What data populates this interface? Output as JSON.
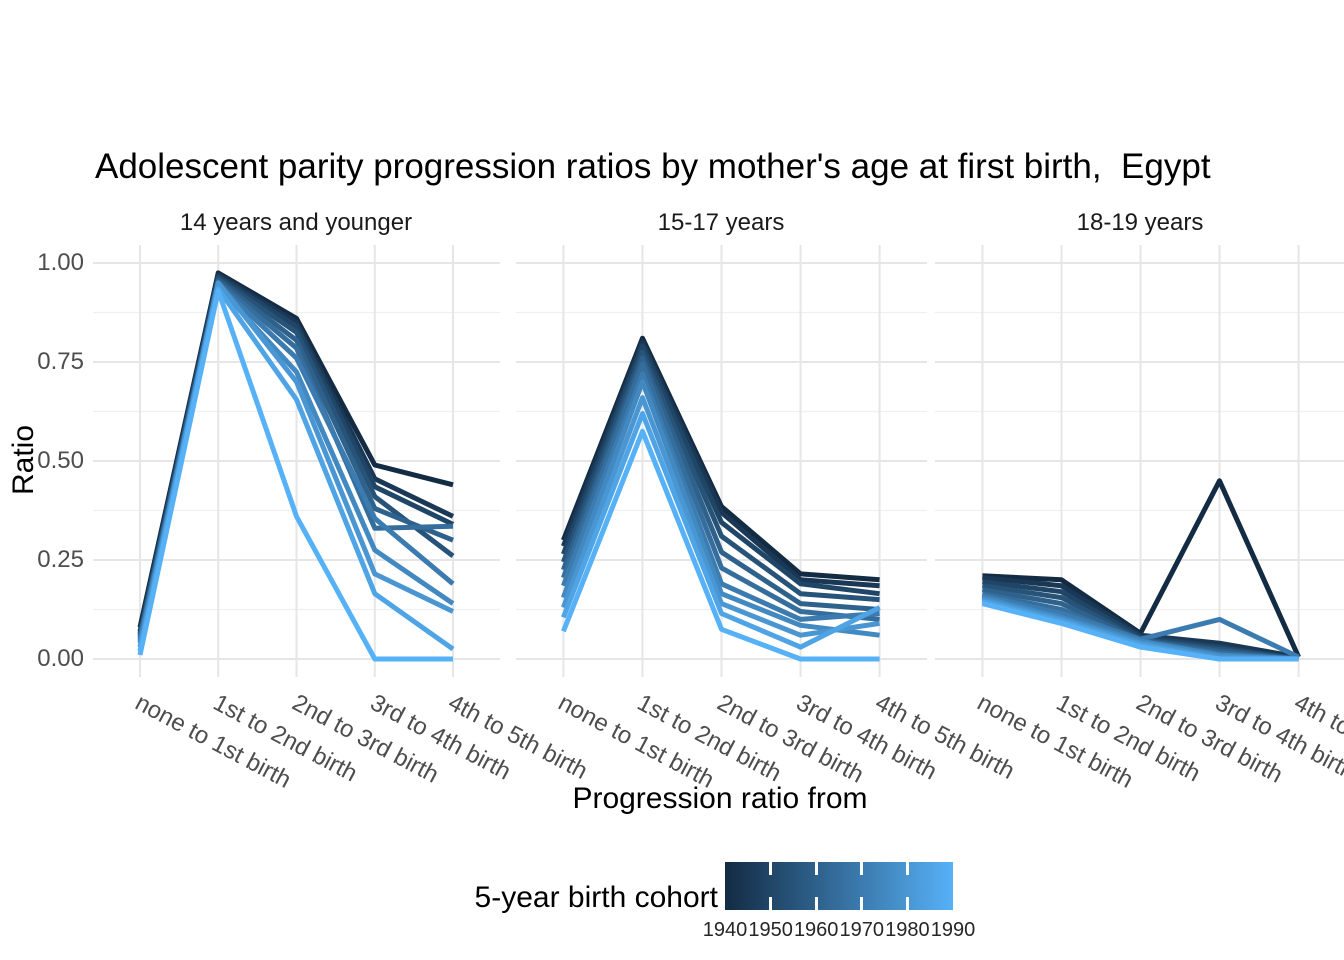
{
  "chart_data": {
    "type": "line",
    "title": "Adolescent parity progression ratios by mother's age at first birth,  Egypt",
    "xlabel": "Progression ratio from",
    "ylabel": "Ratio",
    "categories": [
      "none to 1st birth",
      "1st to 2nd birth",
      "2nd to 3rd birth",
      "3rd to 4th birth",
      "4th to 5th birth"
    ],
    "y_axis": {
      "ticks": [
        0,
        0.25,
        0.5,
        0.75,
        1.0
      ],
      "tick_labels": [
        "0.00",
        "0.25",
        "0.50",
        "0.75",
        "1.00"
      ],
      "range": [
        0,
        1
      ],
      "grid": "major and minor horizontal gridlines, light gray on white"
    },
    "legend": {
      "title": "5-year birth cohort",
      "position": "bottom",
      "tick_labels": [
        "1940",
        "1950",
        "1960",
        "1970",
        "1980",
        "1990"
      ],
      "gradient_low": "#132B43",
      "gradient_mid": "#356E9D",
      "gradient_high": "#56B1F7"
    },
    "cohorts": [
      1940,
      1945,
      1950,
      1955,
      1960,
      1965,
      1970,
      1975,
      1980,
      1985,
      1990
    ],
    "cohort_colors": [
      "#132B43",
      "#1A3855",
      "#204667",
      "#275379",
      "#2E618B",
      "#356E9D",
      "#3B7BAF",
      "#4289C1",
      "#4996D3",
      "#4FA4E5",
      "#56B1F7"
    ],
    "facets": [
      {
        "label": "14 years and younger",
        "series": [
          [
            0.08,
            0.975,
            0.86,
            0.49,
            0.44
          ],
          [
            0.07,
            0.97,
            0.85,
            0.455,
            0.36
          ],
          [
            0.065,
            0.965,
            0.84,
            0.435,
            0.34
          ],
          [
            0.06,
            0.96,
            0.825,
            0.41,
            0.26
          ],
          [
            0.055,
            0.955,
            0.805,
            0.38,
            0.3
          ],
          [
            0.05,
            0.95,
            0.785,
            0.33,
            0.335
          ],
          [
            0.045,
            0.945,
            0.76,
            0.355,
            0.19
          ],
          [
            0.04,
            0.94,
            0.725,
            0.275,
            0.14
          ],
          [
            0.03,
            0.95,
            0.7,
            0.215,
            0.12
          ],
          [
            0.02,
            0.935,
            0.655,
            0.165,
            0.025
          ],
          [
            0.01,
            0.93,
            0.36,
            0.0,
            0.0
          ]
        ]
      },
      {
        "label": "15-17 years",
        "series": [
          [
            0.3,
            0.81,
            0.385,
            0.215,
            0.2
          ],
          [
            0.285,
            0.8,
            0.37,
            0.2,
            0.185
          ],
          [
            0.265,
            0.79,
            0.345,
            0.19,
            0.165
          ],
          [
            0.245,
            0.775,
            0.31,
            0.165,
            0.15
          ],
          [
            0.225,
            0.76,
            0.27,
            0.14,
            0.125
          ],
          [
            0.205,
            0.745,
            0.23,
            0.12,
            0.1
          ],
          [
            0.185,
            0.72,
            0.19,
            0.1,
            0.115
          ],
          [
            0.155,
            0.7,
            0.165,
            0.085,
            0.06
          ],
          [
            0.13,
            0.66,
            0.14,
            0.06,
            0.09
          ],
          [
            0.105,
            0.62,
            0.115,
            0.03,
            0.13
          ],
          [
            0.07,
            0.575,
            0.075,
            0.0,
            0.0
          ]
        ]
      },
      {
        "label": "18-19 years",
        "series": [
          [
            0.21,
            0.2,
            0.065,
            0.45,
            0.005
          ],
          [
            0.205,
            0.185,
            0.06,
            0.04,
            0.005
          ],
          [
            0.195,
            0.17,
            0.055,
            0.03,
            0.0
          ],
          [
            0.185,
            0.155,
            0.05,
            0.025,
            0.0
          ],
          [
            0.175,
            0.14,
            0.048,
            0.02,
            0.0
          ],
          [
            0.165,
            0.125,
            0.045,
            0.015,
            0.0
          ],
          [
            0.16,
            0.115,
            0.05,
            0.1,
            0.005
          ],
          [
            0.155,
            0.105,
            0.045,
            0.01,
            0.0
          ],
          [
            0.15,
            0.1,
            0.04,
            0.005,
            0.0
          ],
          [
            0.145,
            0.095,
            0.035,
            0.0,
            0.0
          ],
          [
            0.14,
            0.09,
            0.03,
            0.0,
            0.0
          ]
        ]
      }
    ]
  }
}
